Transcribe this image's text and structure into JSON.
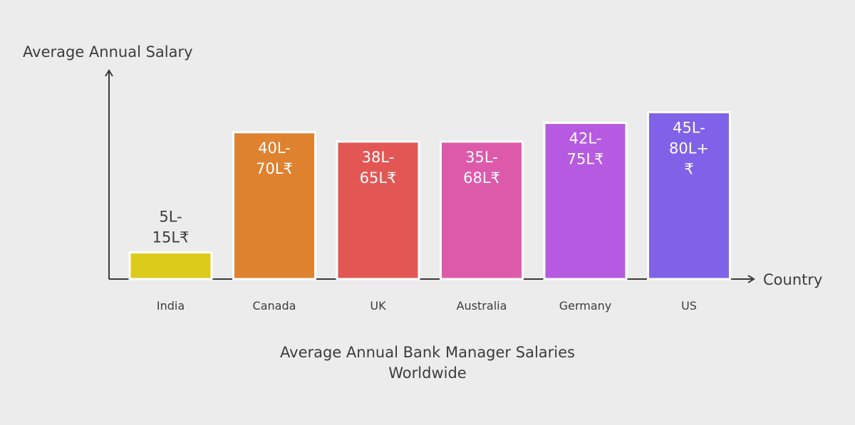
{
  "chart_data": {
    "type": "bar",
    "title_lines": [
      "Average Annual Bank Manager Salaries",
      "Worldwide"
    ],
    "xlabel": "Country",
    "ylabel": "Average Annual Salary",
    "ylim": [
      0,
      80
    ],
    "grid": false,
    "legend": "none",
    "categories": [
      "India",
      "Canada",
      "UK",
      "Australia",
      "Germany",
      "US"
    ],
    "values": [
      10,
      55,
      51.5,
      51.5,
      58.5,
      62.5
    ],
    "value_labels": [
      [
        "5L-",
        "15L₹"
      ],
      [
        "40L-",
        "70L₹"
      ],
      [
        "38L-",
        "65L₹"
      ],
      [
        "35L-",
        "68L₹"
      ],
      [
        "42L-",
        "75L₹"
      ],
      [
        "45L-",
        "80L+",
        "₹"
      ]
    ],
    "colors": [
      "#ddcb1c",
      "#de8230",
      "#e25754",
      "#dd5aab",
      "#b65ae2",
      "#7f62e8"
    ]
  }
}
